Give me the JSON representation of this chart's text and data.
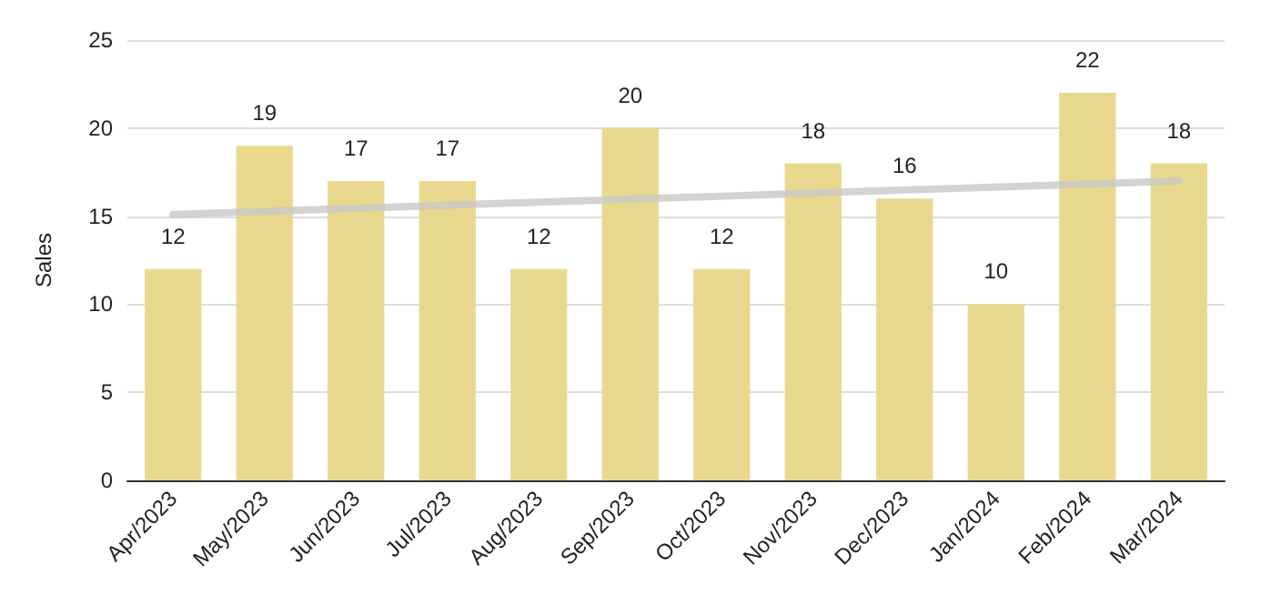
{
  "chart_data": {
    "type": "bar",
    "ylabel": "Sales",
    "categories": [
      "Apr/2023",
      "May/2023",
      "Jun/2023",
      "Jul/2023",
      "Aug/2023",
      "Sep/2023",
      "Oct/2023",
      "Nov/2023",
      "Dec/2023",
      "Jan/2024",
      "Feb/2024",
      "Mar/2024"
    ],
    "series": [
      {
        "color": "#e8d98e",
        "values": [
          12,
          19,
          17,
          17,
          12,
          20,
          12,
          18,
          16,
          10,
          22,
          18
        ],
        "value_labels": [
          "12",
          "19",
          "17",
          "17",
          "12",
          "20",
          "12",
          "18",
          "16",
          "10",
          "22",
          "18"
        ]
      },
      {
        "type": "line",
        "color": "#c8c8c8",
        "x": [
          "Apr/2023",
          "Mar/2024"
        ],
        "values": [
          15.1,
          17.0
        ]
      }
    ],
    "ylim": [
      0,
      25
    ],
    "yticks": [
      0,
      5,
      10,
      15,
      20,
      25
    ],
    "grid": "y",
    "marker": "none"
  }
}
